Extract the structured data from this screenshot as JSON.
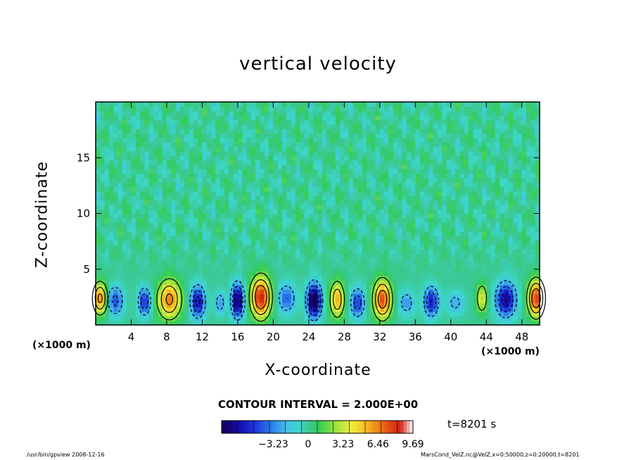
{
  "chart_data": {
    "type": "heatmap",
    "title": "vertical velocity",
    "xlabel": "X-coordinate",
    "ylabel": "Z-coordinate",
    "x_unit_label": "(×1000 m)",
    "xlim": [
      0,
      50
    ],
    "ylim": [
      0,
      20
    ],
    "x_ticks": [
      4,
      8,
      12,
      16,
      20,
      24,
      28,
      32,
      36,
      40,
      44,
      48
    ],
    "y_ticks": [
      5,
      10,
      15
    ],
    "contour_interval_label": "CONTOUR INTERVAL = 2.000E+00",
    "time_label": "t=8201 s",
    "colorbar": {
      "range": [
        -8.0,
        9.69
      ],
      "tick_values": [
        -3.23,
        0,
        3.23,
        6.46,
        9.69
      ],
      "tick_labels": [
        "−3.23",
        "0",
        "3.23",
        "6.46",
        "9.69"
      ]
    },
    "low_level_cells": [
      {
        "x": 0.5,
        "z": 2.4,
        "w": 6.5,
        "sx": 0.8,
        "sz": 1.4
      },
      {
        "x": 2.2,
        "z": 2.2,
        "w": -4.5,
        "sx": 0.9,
        "sz": 1.3
      },
      {
        "x": 5.5,
        "z": 2.1,
        "w": -5.5,
        "sx": 0.7,
        "sz": 1.2
      },
      {
        "x": 8.3,
        "z": 2.3,
        "w": 6.5,
        "sx": 1.3,
        "sz": 1.7
      },
      {
        "x": 11.5,
        "z": 2.1,
        "w": -6.5,
        "sx": 0.8,
        "sz": 1.4
      },
      {
        "x": 14.0,
        "z": 2.0,
        "w": -3.0,
        "sx": 0.6,
        "sz": 1.0
      },
      {
        "x": 16.0,
        "z": 2.2,
        "w": -8.0,
        "sx": 0.7,
        "sz": 1.5
      },
      {
        "x": 18.6,
        "z": 2.5,
        "w": 8.5,
        "sx": 1.1,
        "sz": 1.8
      },
      {
        "x": 21.5,
        "z": 2.4,
        "w": -4.0,
        "sx": 1.0,
        "sz": 1.3
      },
      {
        "x": 24.6,
        "z": 2.2,
        "w": -9.0,
        "sx": 0.8,
        "sz": 1.5
      },
      {
        "x": 27.2,
        "z": 2.3,
        "w": 5.5,
        "sx": 0.8,
        "sz": 1.6
      },
      {
        "x": 29.5,
        "z": 2.0,
        "w": -5.0,
        "sx": 0.8,
        "sz": 1.3
      },
      {
        "x": 32.3,
        "z": 2.3,
        "w": 7.5,
        "sx": 1.0,
        "sz": 1.7
      },
      {
        "x": 35.0,
        "z": 2.0,
        "w": -3.0,
        "sx": 0.9,
        "sz": 1.1
      },
      {
        "x": 37.8,
        "z": 2.1,
        "w": -6.0,
        "sx": 0.8,
        "sz": 1.3
      },
      {
        "x": 40.5,
        "z": 2.0,
        "w": -2.5,
        "sx": 1.0,
        "sz": 1.0
      },
      {
        "x": 43.5,
        "z": 2.4,
        "w": 4.0,
        "sx": 0.6,
        "sz": 1.3
      },
      {
        "x": 46.2,
        "z": 2.3,
        "w": -7.0,
        "sx": 1.1,
        "sz": 1.5
      },
      {
        "x": 49.6,
        "z": 2.4,
        "w": 8.0,
        "sx": 0.9,
        "sz": 1.6
      }
    ],
    "grid": false,
    "legend": "bottom-center colorbar"
  },
  "footer": {
    "left": "/usr/bin/gpview   2008-12-16",
    "right": "MarsCond_VelZ.nc@VelZ,x=0:50000,z=0:20000,t=8201"
  }
}
